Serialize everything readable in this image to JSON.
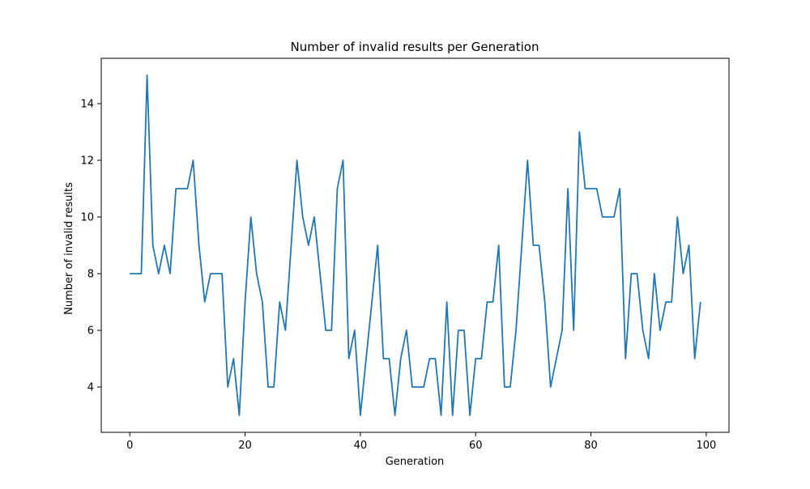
{
  "chart_data": {
    "type": "line",
    "title": "Number of invalid results per Generation",
    "xlabel": "Generation",
    "ylabel": "Number of invalid results",
    "xlim": [
      -4.95,
      103.95
    ],
    "ylim": [
      2.4,
      15.6
    ],
    "xticks": [
      0,
      20,
      40,
      60,
      80,
      100
    ],
    "yticks": [
      4,
      6,
      8,
      10,
      12,
      14
    ],
    "grid": false,
    "line_color": "#1f77b4",
    "series": [
      {
        "name": "invalid results",
        "x": [
          0,
          1,
          2,
          3,
          4,
          5,
          6,
          7,
          8,
          9,
          10,
          11,
          12,
          13,
          14,
          15,
          16,
          17,
          18,
          19,
          20,
          21,
          22,
          23,
          24,
          25,
          26,
          27,
          28,
          29,
          30,
          31,
          32,
          33,
          34,
          35,
          36,
          37,
          38,
          39,
          40,
          41,
          42,
          43,
          44,
          45,
          46,
          47,
          48,
          49,
          50,
          51,
          52,
          53,
          54,
          55,
          56,
          57,
          58,
          59,
          60,
          61,
          62,
          63,
          64,
          65,
          66,
          67,
          68,
          69,
          70,
          71,
          72,
          73,
          74,
          75,
          76,
          77,
          78,
          79,
          80,
          81,
          82,
          83,
          84,
          85,
          86,
          87,
          88,
          89,
          90,
          91,
          92,
          93,
          94,
          95,
          96,
          97,
          98,
          99
        ],
        "values": [
          8,
          8,
          8,
          15,
          9,
          8,
          9,
          8,
          11,
          11,
          11,
          12,
          9,
          7,
          8,
          8,
          8,
          4,
          5,
          3,
          7,
          10,
          8,
          7,
          4,
          4,
          7,
          6,
          9,
          12,
          10,
          9,
          10,
          8,
          6,
          6,
          11,
          12,
          5,
          6,
          3,
          5,
          7,
          9,
          5,
          5,
          3,
          5,
          6,
          4,
          4,
          4,
          5,
          5,
          3,
          7,
          3,
          6,
          6,
          3,
          5,
          5,
          7,
          7,
          9,
          4,
          4,
          6,
          9,
          12,
          9,
          9,
          7,
          4,
          5,
          6,
          11,
          6,
          13,
          11,
          11,
          11,
          10,
          10,
          10,
          11,
          5,
          8,
          8,
          6,
          5,
          8,
          6,
          7,
          7,
          10,
          8,
          9,
          5,
          7
        ]
      }
    ]
  }
}
